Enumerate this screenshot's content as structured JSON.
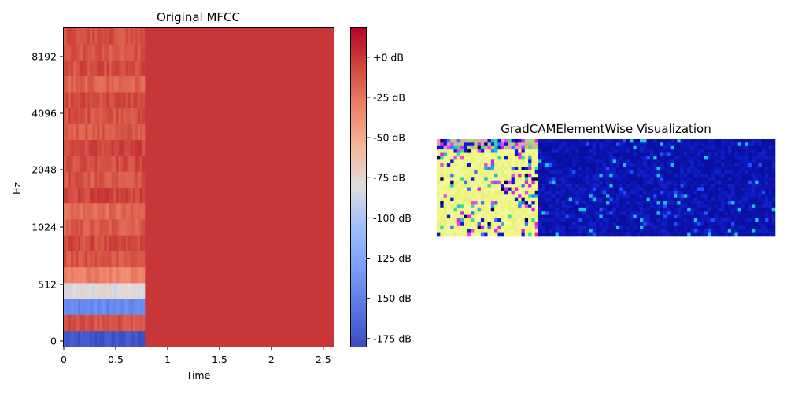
{
  "chart_data": [
    {
      "type": "heatmap",
      "title": "Original MFCC",
      "xlabel": "Time",
      "ylabel": "Hz",
      "x_ticks": [
        "0",
        "0.5",
        "1",
        "1.5",
        "2",
        "2.5"
      ],
      "x_tick_values": [
        0,
        0.5,
        1,
        1.5,
        2,
        2.5
      ],
      "xlim": [
        0,
        2.6
      ],
      "y_ticks": [
        "0",
        "512",
        "1024",
        "2048",
        "4096",
        "8192"
      ],
      "y_tick_values": [
        0,
        512,
        1024,
        2048,
        4096,
        8192
      ],
      "y_scale": "mel",
      "colormap": "coolwarm",
      "colorbar": {
        "ticks": [
          "+0 dB",
          "-25 dB",
          "-50 dB",
          "-75 dB",
          "-100 dB",
          "-125 dB",
          "-150 dB",
          "-175 dB"
        ],
        "tick_values": [
          0,
          -25,
          -50,
          -75,
          -100,
          -125,
          -150,
          -175
        ],
        "range": [
          -180,
          18
        ]
      },
      "active_time_end": 0.78,
      "rows": 20,
      "row_mean_db": [
        -175,
        -10,
        -145,
        -80,
        -30,
        -12,
        -8,
        -15,
        -20,
        -5,
        -12,
        -8,
        -6,
        -14,
        -10,
        -7,
        -18,
        -9,
        -12,
        -10
      ],
      "padding_db": 0
    },
    {
      "type": "heatmap",
      "title": "GradCAMElementWise Visualization",
      "colormap": "gist_ncar",
      "cols": 100,
      "rows": 28,
      "active_cols": 30,
      "active_value": "high (yellow / pale)",
      "inactive_value": "low (blue)"
    }
  ]
}
